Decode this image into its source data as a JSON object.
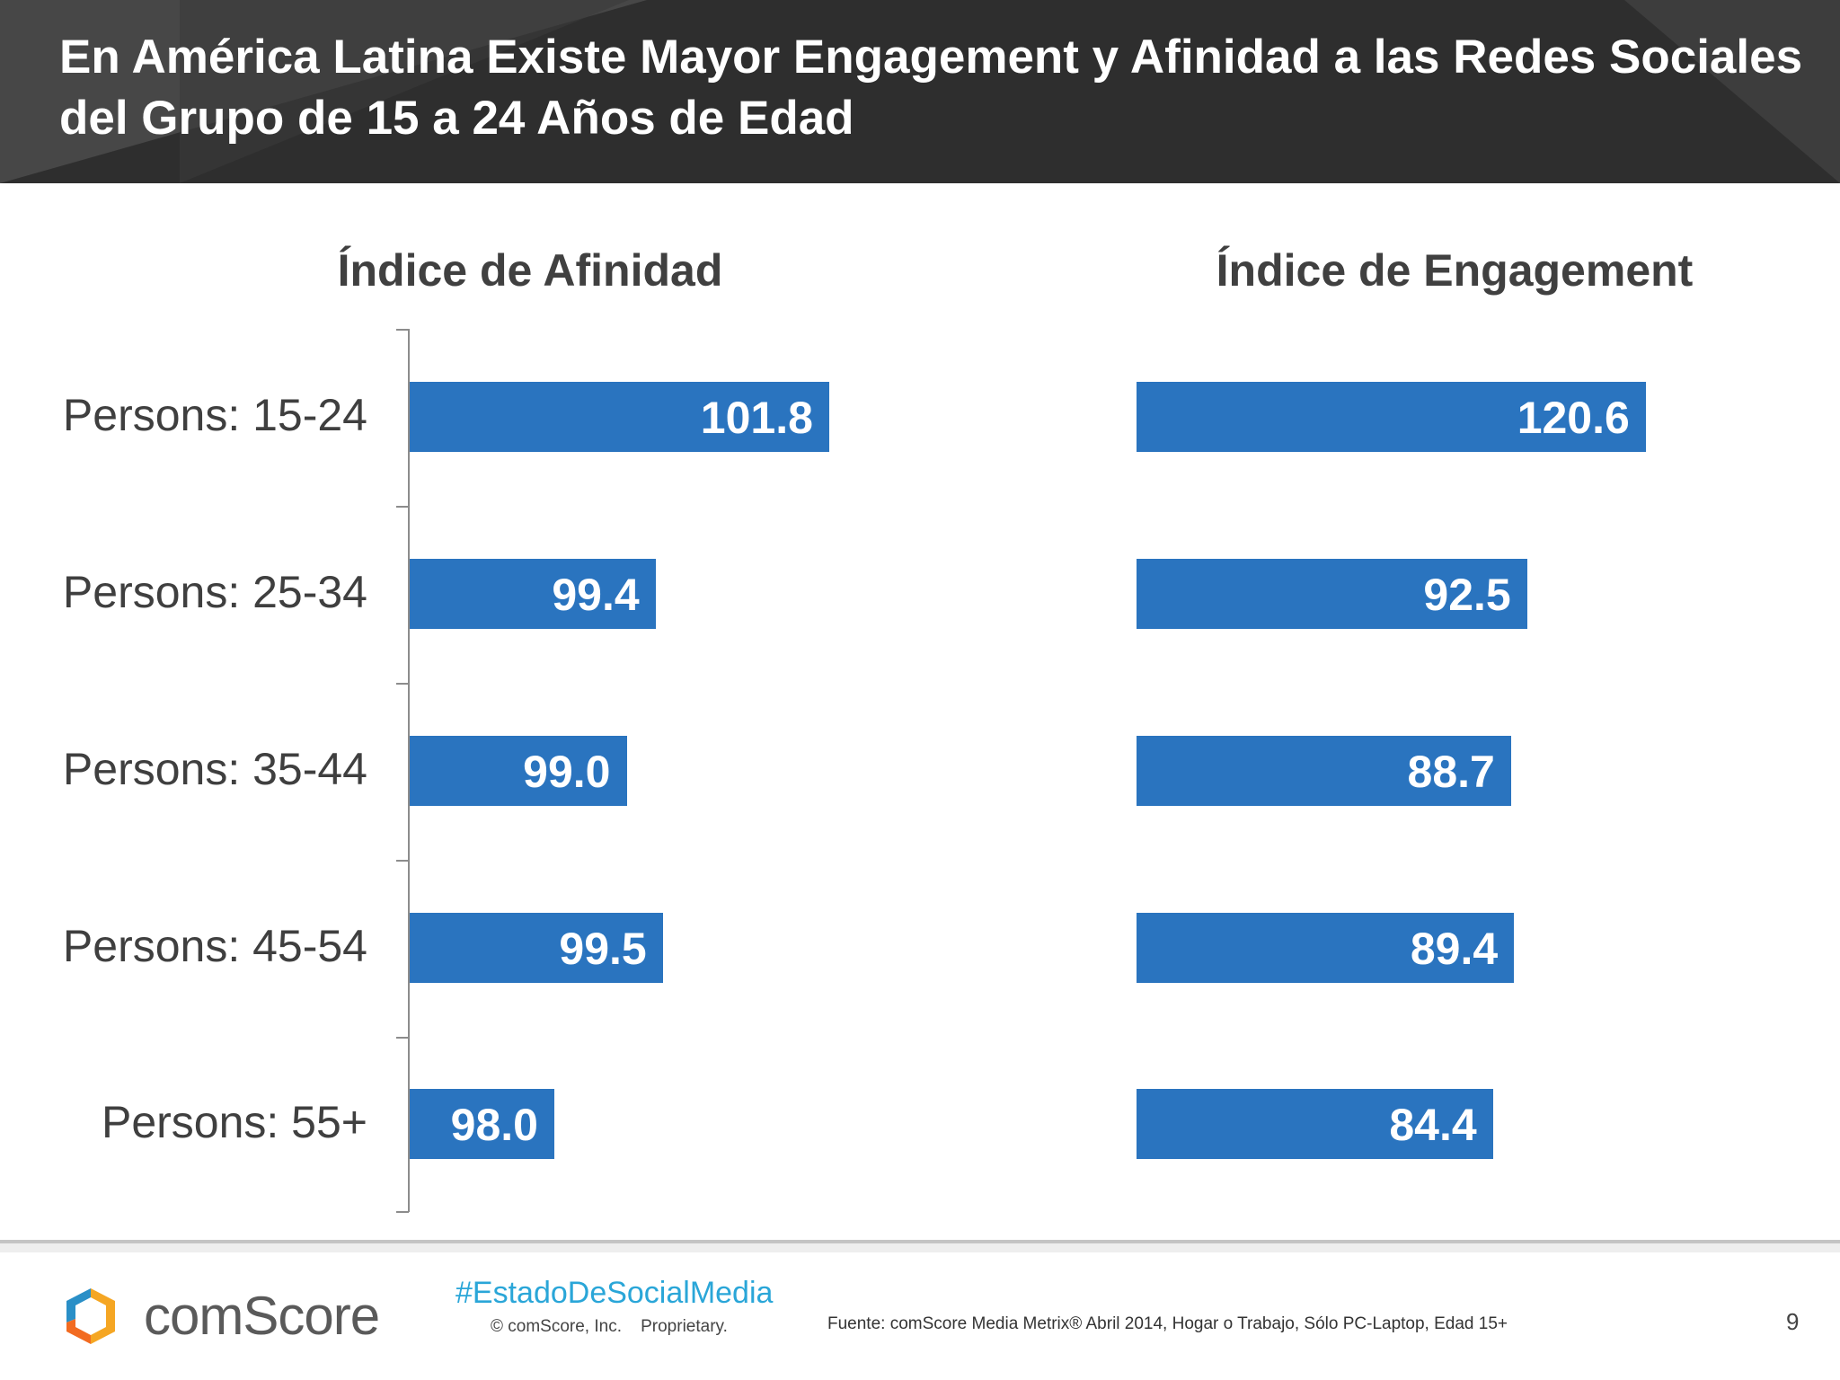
{
  "header": {
    "title": "En América Latina Existe Mayor Engagement y Afinidad a las Redes Sociales del Grupo de 15 a 24 Años de Edad"
  },
  "chart_data": [
    {
      "type": "bar",
      "orientation": "horizontal",
      "title": "Índice de Afinidad",
      "categories": [
        "Persons: 15-24",
        "Persons: 25-34",
        "Persons: 35-44",
        "Persons: 45-54",
        "Persons: 55+"
      ],
      "values": [
        101.8,
        99.4,
        99.0,
        99.5,
        98.0
      ],
      "value_labels": [
        "101.8",
        "99.4",
        "99.0",
        "99.5",
        "98.0"
      ],
      "xlim": [
        96,
        102
      ],
      "grid": false,
      "color": "#2a74bf"
    },
    {
      "type": "bar",
      "orientation": "horizontal",
      "title": "Índice de Engagement",
      "categories": [
        "Persons: 15-24",
        "Persons: 25-34",
        "Persons: 35-44",
        "Persons: 45-54",
        "Persons: 55+"
      ],
      "values": [
        120.6,
        92.5,
        88.7,
        89.4,
        84.4
      ],
      "value_labels": [
        "120.6",
        "92.5",
        "88.7",
        "89.4",
        "84.4"
      ],
      "xlim": [
        0,
        121
      ],
      "grid": false,
      "color": "#2a74bf"
    }
  ],
  "footer": {
    "brand": "comScore",
    "hashtag": "#EstadoDeSocialMedia",
    "copyright": "© comScore, Inc.    Proprietary.",
    "source": "Fuente: comScore Media Metrix® Abril 2014, Hogar o Trabajo, Sólo PC-Laptop, Edad 15+",
    "page_number": "9"
  }
}
